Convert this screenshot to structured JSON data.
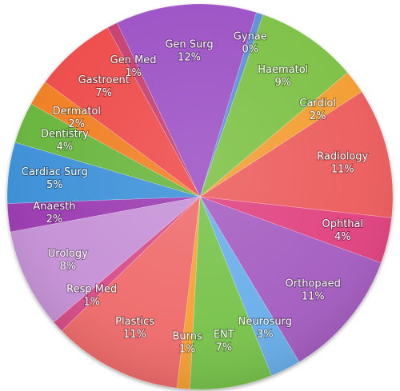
{
  "chart_data": {
    "type": "pie",
    "slices": [
      {
        "name": "Gynae",
        "label": "0%",
        "value": 0.6,
        "color": "#5b8fd6"
      },
      {
        "name": "Haematol",
        "label": "9%",
        "value": 8.7,
        "color": "#7bc043"
      },
      {
        "name": "Cardiol",
        "label": "2%",
        "value": 2.0,
        "color": "#f39c2f"
      },
      {
        "name": "Radiology",
        "label": "11%",
        "value": 11.1,
        "color": "#ec5b5b"
      },
      {
        "name": "Ophthal",
        "label": "4%",
        "value": 3.9,
        "color": "#e0407f"
      },
      {
        "name": "Orthopaed",
        "label": "11%",
        "value": 11.0,
        "color": "#a45cc0"
      },
      {
        "name": "Neurosurg",
        "label": "3%",
        "value": 2.6,
        "color": "#68aeea"
      },
      {
        "name": "ENT",
        "label": "7%",
        "value": 7.0,
        "color": "#77c24a"
      },
      {
        "name": "Burns",
        "label": "1%",
        "value": 1.1,
        "color": "#f5a033"
      },
      {
        "name": "Plastics",
        "label": "11%",
        "value": 11.0,
        "color": "#ef6a6a"
      },
      {
        "name": "Resp Med",
        "label": "1%",
        "value": 1.0,
        "color": "#d64b86"
      },
      {
        "name": "Urology",
        "label": "8%",
        "value": 8.5,
        "color": "#c590d6"
      },
      {
        "name": "Anaesth",
        "label": "2%",
        "value": 2.4,
        "color": "#9a38b0"
      },
      {
        "name": "Cardiac Surg",
        "label": "5%",
        "value": 5.2,
        "color": "#3a8fd8"
      },
      {
        "name": "Dentistry",
        "label": "4%",
        "value": 3.5,
        "color": "#66b43a"
      },
      {
        "name": "Dermatol",
        "label": "2%",
        "value": 2.2,
        "color": "#f07d1f"
      },
      {
        "name": "Gastroent",
        "label": "7%",
        "value": 7.0,
        "color": "#ee4848"
      },
      {
        "name": "Gen Med",
        "label": "1%",
        "value": 0.9,
        "color": "#c43d6e"
      },
      {
        "name": "Gen Surg",
        "label": "12%",
        "value": 12.0,
        "color": "#9b4fc4"
      }
    ]
  }
}
